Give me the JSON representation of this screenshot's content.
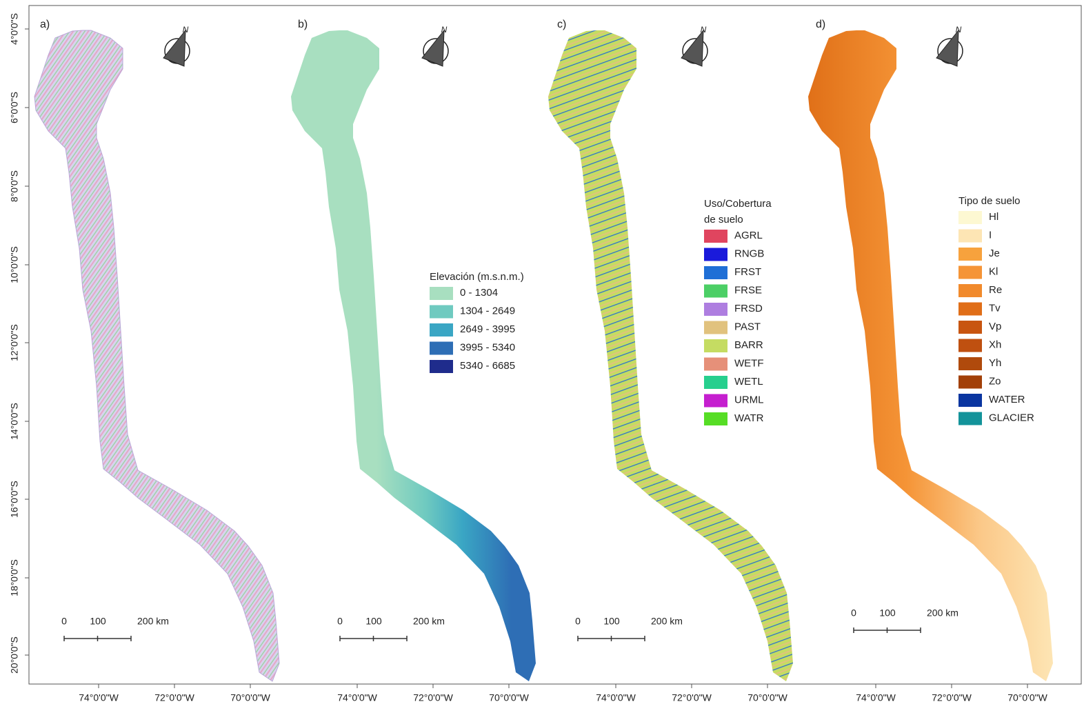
{
  "axes": {
    "y_ticks": [
      "4°0'0\"S",
      "6°0'0\"S",
      "8°0'0\"S",
      "10°0'0\"S",
      "12°0'0\"S",
      "14°0'0\"S",
      "16°0'0\"S",
      "18°0'0\"S",
      "20°0'0\"S"
    ],
    "x_ticks": [
      "74°0'0\"W",
      "72°0'0\"W",
      "70°0'0\"W"
    ]
  },
  "north_label": "N",
  "panels": [
    {
      "label": "a)",
      "scale_bar": [
        "0",
        "100",
        "200 km"
      ]
    },
    {
      "label": "b)",
      "scale_bar": [
        "0",
        "100",
        "200 km"
      ],
      "legend": {
        "title": [
          "Elevación (m.s.n.m.)"
        ],
        "items": [
          {
            "label": "0 - 1304",
            "color": "#a8dfc0"
          },
          {
            "label": "1304 - 2649",
            "color": "#6fcac0"
          },
          {
            "label": "2649 - 3995",
            "color": "#3aa6c4"
          },
          {
            "label": "3995 - 5340",
            "color": "#2e6eb5"
          },
          {
            "label": "5340 - 6685",
            "color": "#1f2c8c"
          }
        ]
      }
    },
    {
      "label": "c)",
      "scale_bar": [
        "0",
        "100",
        "200 km"
      ],
      "legend": {
        "title": [
          "Uso/Cobertura",
          "de suelo"
        ],
        "items": [
          {
            "label": "AGRL",
            "color": "#e0455f"
          },
          {
            "label": "RNGB",
            "color": "#1a1adb"
          },
          {
            "label": "FRST",
            "color": "#1f6fd6"
          },
          {
            "label": "FRSE",
            "color": "#4ccf66"
          },
          {
            "label": "FRSD",
            "color": "#ae7ee0"
          },
          {
            "label": "PAST",
            "color": "#e1c27e"
          },
          {
            "label": "BARR",
            "color": "#c5dc62"
          },
          {
            "label": "WETF",
            "color": "#e69079"
          },
          {
            "label": "WETL",
            "color": "#27cf8e"
          },
          {
            "label": "URML",
            "color": "#c51fcf"
          },
          {
            "label": "WATR",
            "color": "#56dd25"
          }
        ]
      }
    },
    {
      "label": "d)",
      "scale_bar": [
        "0",
        "100",
        "200 km"
      ],
      "legend": {
        "title": [
          "Tipo de suelo"
        ],
        "items": [
          {
            "label": "Hl",
            "color": "#fdf8d2"
          },
          {
            "label": "I",
            "color": "#fde5b4"
          },
          {
            "label": "Je",
            "color": "#f7a23d"
          },
          {
            "label": "Kl",
            "color": "#f59436"
          },
          {
            "label": "Re",
            "color": "#f18a2c"
          },
          {
            "label": "Tv",
            "color": "#e06e18"
          },
          {
            "label": "Vp",
            "color": "#c85510"
          },
          {
            "label": "Xh",
            "color": "#bf5010"
          },
          {
            "label": "Yh",
            "color": "#b04a0c"
          },
          {
            "label": "Zo",
            "color": "#a24008"
          },
          {
            "label": "WATER",
            "color": "#0a35a0"
          },
          {
            "label": "GLACIER",
            "color": "#13939a"
          }
        ]
      }
    }
  ]
}
